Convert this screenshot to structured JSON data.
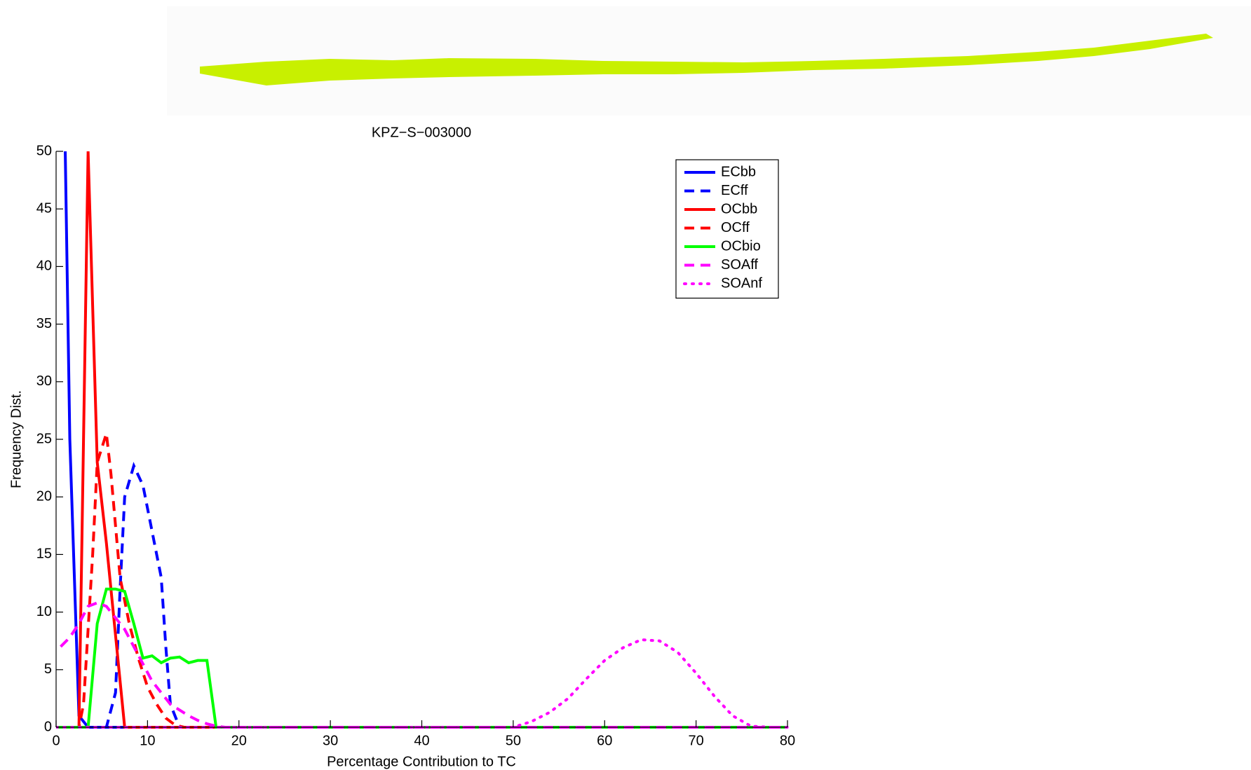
{
  "chart_data": {
    "type": "line",
    "title": "KPZ−S−003000",
    "x_label": "Percentage Contribution to TC",
    "y_label": "Frequency Dist.",
    "xlim": [
      0,
      80
    ],
    "ylim": [
      0,
      50
    ],
    "xticks": [
      0,
      10,
      20,
      30,
      40,
      50,
      60,
      70,
      80
    ],
    "yticks": [
      0,
      5,
      10,
      15,
      20,
      25,
      30,
      35,
      40,
      45,
      50
    ],
    "grid": false,
    "legend": "upper right",
    "series": [
      {
        "name": "ECbb",
        "color": "#0000ff",
        "linestyle": "solid",
        "x": [
          1,
          1.5,
          2.5,
          3.5,
          80
        ],
        "values": [
          50,
          25,
          1,
          0,
          0
        ]
      },
      {
        "name": "ECff",
        "color": "#0000ff",
        "linestyle": "dashed",
        "x": [
          0,
          5.5,
          6.5,
          7,
          7.5,
          8.5,
          9.5,
          10.5,
          11.5,
          12,
          12.5,
          13.5,
          80
        ],
        "values": [
          0,
          0,
          3,
          12,
          20,
          22.7,
          21,
          17,
          13,
          7,
          2,
          0,
          0
        ]
      },
      {
        "name": "OCbb",
        "color": "#ff0000",
        "linestyle": "solid",
        "x": [
          0,
          2.5,
          3.5,
          4.5,
          5.5,
          6.5,
          7.5,
          80
        ],
        "values": [
          0,
          0,
          50,
          23,
          16,
          8,
          0,
          0
        ]
      },
      {
        "name": "OCff",
        "color": "#ff0000",
        "linestyle": "dashed",
        "x": [
          0,
          2.5,
          3,
          4,
          4.5,
          5.5,
          6,
          7,
          8,
          9,
          10,
          11,
          12,
          13,
          14,
          80
        ],
        "values": [
          0,
          0,
          2,
          15,
          23,
          25.5,
          22,
          13,
          9,
          6,
          3.5,
          2,
          0.8,
          0.2,
          0,
          0
        ]
      },
      {
        "name": "OCbio",
        "color": "#00ff00",
        "linestyle": "solid",
        "x": [
          0,
          3.5,
          4.5,
          5.5,
          6.5,
          7.5,
          8.5,
          9.5,
          10.5,
          11.5,
          12.5,
          13.5,
          14.5,
          15.5,
          16.5,
          17.5,
          80
        ],
        "values": [
          0,
          0,
          9,
          12,
          12,
          11.8,
          9,
          6,
          6.2,
          5.6,
          6,
          6.1,
          5.6,
          5.8,
          5.8,
          0,
          0
        ]
      },
      {
        "name": "SOAff",
        "color": "#ff00ff",
        "linestyle": "dashed",
        "x": [
          0.5,
          1.5,
          2.5,
          3.5,
          4.5,
          5.5,
          6.5,
          7.5,
          8.5,
          9.5,
          10.5,
          11.5,
          12.5,
          13.5,
          14.5,
          15.5,
          16.5,
          17.5,
          18.5,
          80
        ],
        "values": [
          7,
          7.8,
          9,
          10.5,
          10.8,
          10.5,
          9.5,
          8.5,
          7,
          5.5,
          4,
          3,
          2,
          1.5,
          1,
          0.6,
          0.3,
          0.1,
          0,
          0
        ]
      },
      {
        "name": "SOAnf",
        "color": "#ff00ff",
        "linestyle": "dotted",
        "x": [
          0,
          50,
          52,
          54,
          56,
          58,
          60,
          62,
          64,
          66,
          68,
          70,
          72,
          74,
          76,
          78,
          80
        ],
        "values": [
          0,
          0,
          0.5,
          1.3,
          2.5,
          4.2,
          5.8,
          6.9,
          7.6,
          7.5,
          6.5,
          4.7,
          2.7,
          1,
          0.1,
          0,
          0
        ]
      }
    ]
  }
}
